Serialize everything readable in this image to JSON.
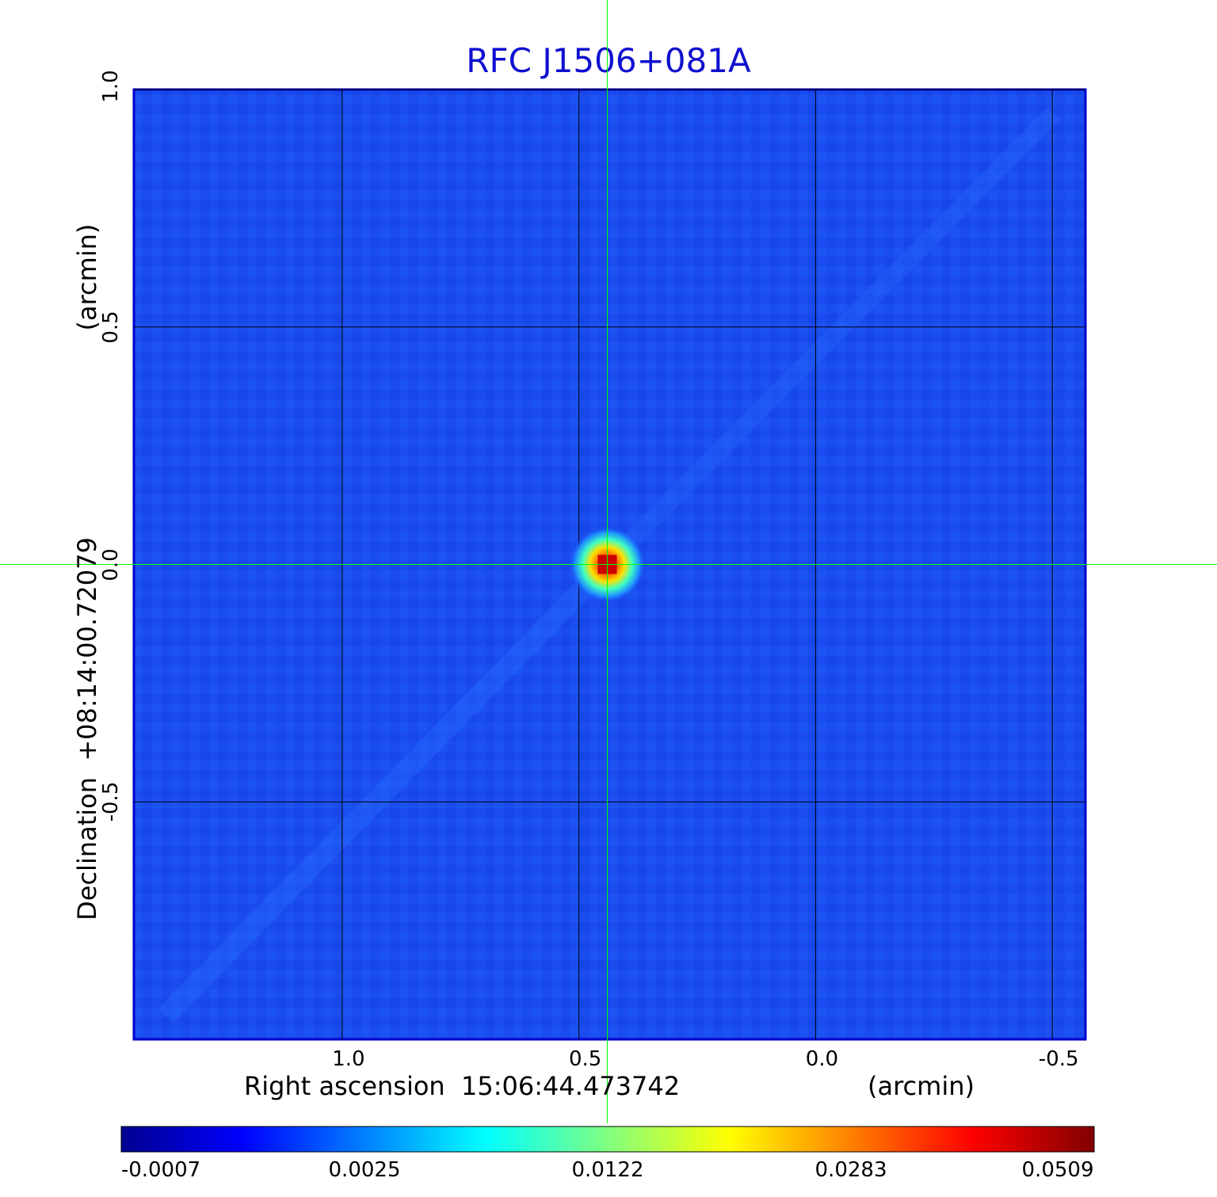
{
  "chart_data": {
    "type": "heatmap",
    "title": "RFC J1506+081A",
    "xlabel": "Right ascension  15:06:44.473742",
    "xunit": "(arcmin)",
    "ylabel": "Declination  +08:14:00.72079",
    "yunit": "(arcmin)",
    "xlim": [
      1.44,
      -0.57
    ],
    "ylim": [
      -1.0,
      1.0
    ],
    "x_ticks": [
      {
        "value": 1.0,
        "label": "1.0"
      },
      {
        "value": 0.5,
        "label": "0.5"
      },
      {
        "value": 0.0,
        "label": "0.0"
      },
      {
        "value": -0.5,
        "label": "-0.5"
      }
    ],
    "y_ticks": [
      {
        "value": 1.0,
        "label": "1.0"
      },
      {
        "value": 0.5,
        "label": "0.5"
      },
      {
        "value": 0.0,
        "label": "0.0"
      },
      {
        "value": -0.5,
        "label": "-0.5"
      }
    ],
    "grid": true,
    "source_peak": {
      "x": 0.44,
      "y": 0.0,
      "value": 0.0509
    },
    "crosshair": {
      "x": 0.44,
      "y": 0.0
    },
    "colorbar": {
      "colormap": "jet",
      "ticks": [
        {
          "value": -0.0007,
          "label": "-0.0007"
        },
        {
          "value": 0.0025,
          "label": "0.0025"
        },
        {
          "value": 0.0122,
          "label": "0.0122"
        },
        {
          "value": 0.0283,
          "label": "0.0283"
        },
        {
          "value": 0.0509,
          "label": "0.0509"
        }
      ]
    },
    "colors": {
      "background_field": "#1a4cf0",
      "grid": "#000000",
      "crosshair": "#00ff00",
      "title": "#1010d0"
    }
  }
}
